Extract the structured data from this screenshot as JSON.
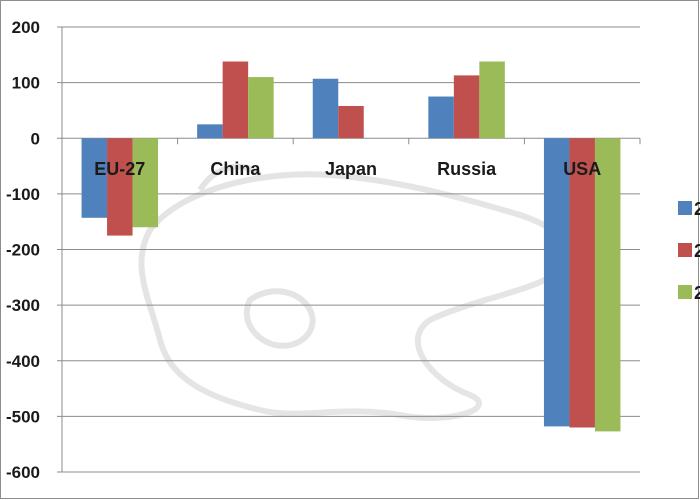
{
  "chart_data": {
    "type": "bar",
    "categories": [
      "EU-27",
      "China",
      "Japan",
      "Russia",
      "USA"
    ],
    "series": [
      {
        "legend_label": "2",
        "color": "#4f81bd",
        "values": [
          -143,
          25,
          107,
          75,
          -518
        ]
      },
      {
        "legend_label": "2",
        "color": "#c0504d",
        "values": [
          -175,
          138,
          58,
          113,
          -520
        ]
      },
      {
        "legend_label": "2",
        "color": "#9bbb59",
        "values": [
          -160,
          110,
          0,
          138,
          -527
        ]
      }
    ],
    "ylim": [
      -600,
      200
    ],
    "yticks": [
      200,
      100,
      0,
      -100,
      -200,
      -300,
      -400,
      -500,
      -600
    ],
    "ytick_labels": [
      "200",
      "100",
      "0",
      "-100",
      "-200",
      "-300",
      "-400",
      "-500",
      "-600"
    ],
    "grid": true,
    "legend_position": "right",
    "title": "",
    "xlabel": "",
    "ylabel": ""
  }
}
